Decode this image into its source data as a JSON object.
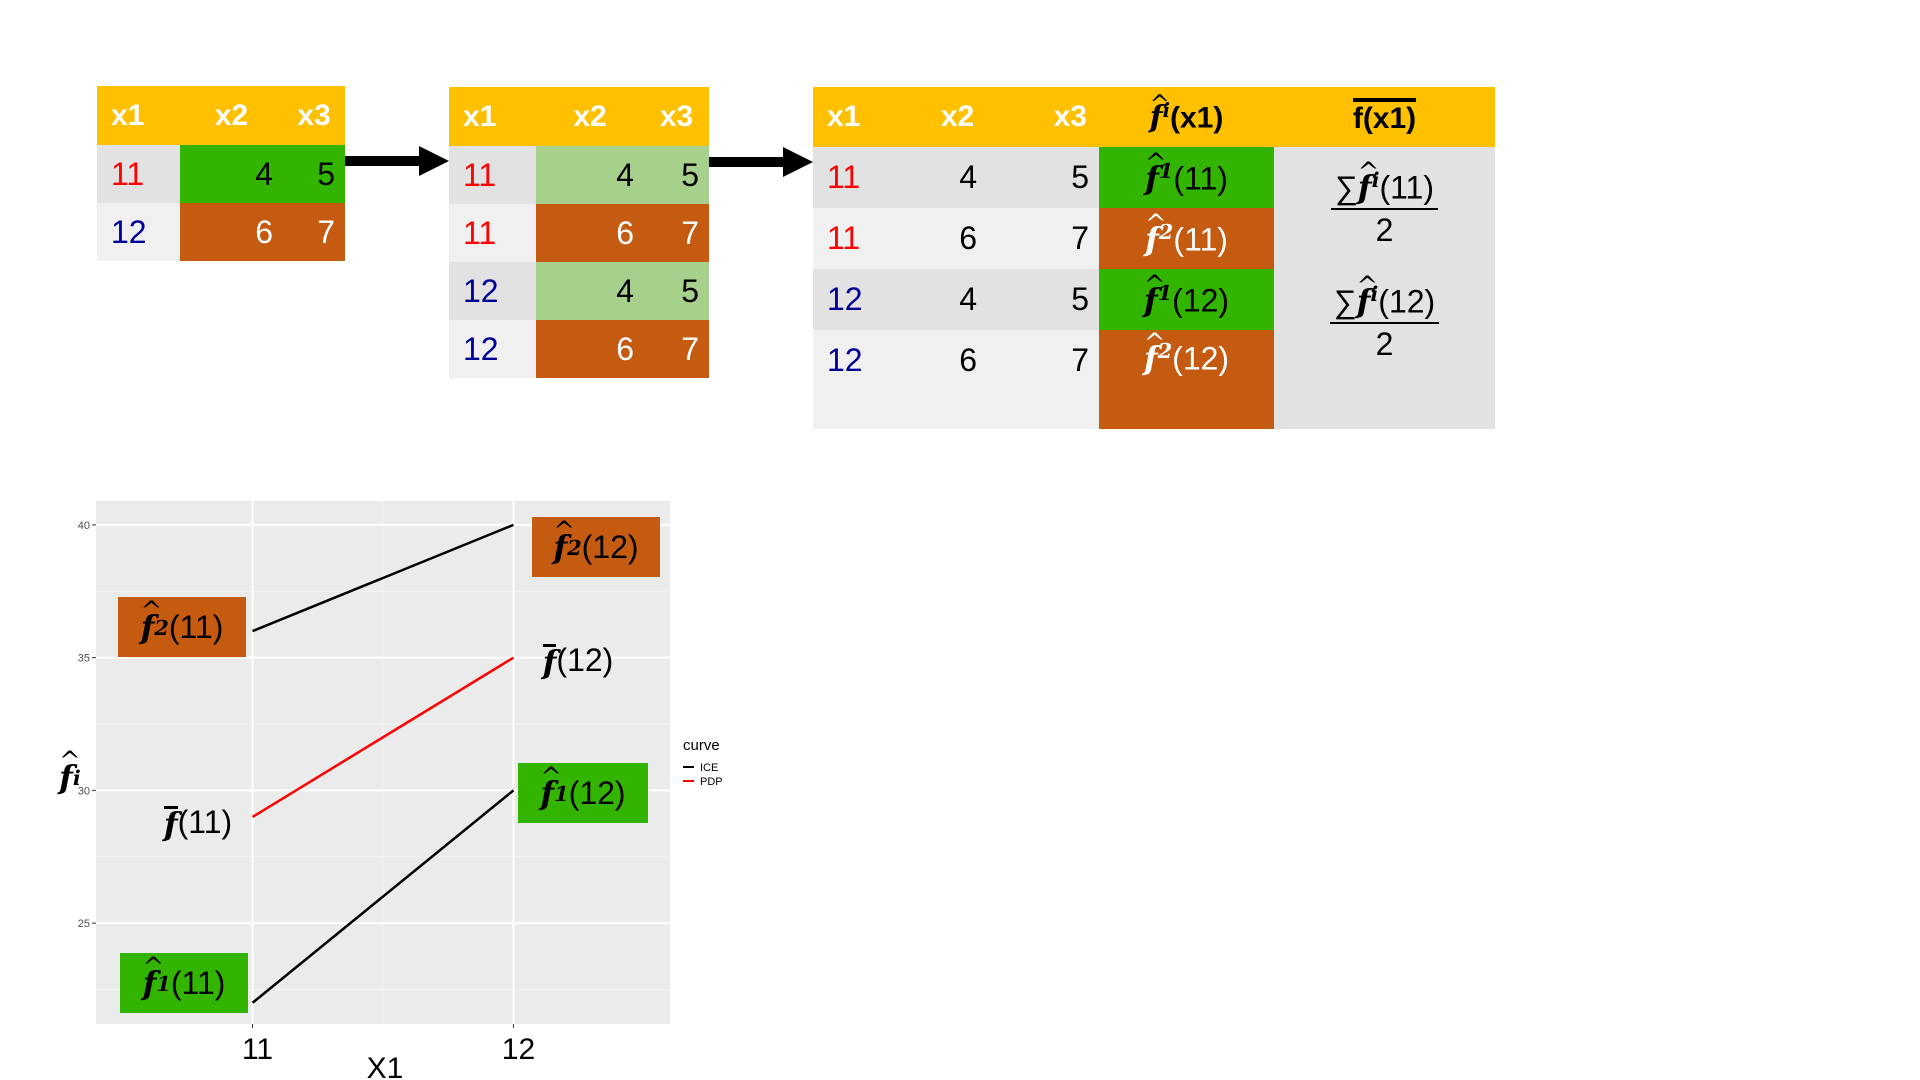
{
  "table1": {
    "headers": [
      "x1",
      "x2",
      "x3"
    ],
    "rows": [
      [
        "11",
        "4",
        "5"
      ],
      [
        "12",
        "6",
        "7"
      ]
    ]
  },
  "table2": {
    "headers": [
      "x1",
      "x2",
      "x3"
    ],
    "rows": [
      [
        "11",
        "4",
        "5"
      ],
      [
        "11",
        "6",
        "7"
      ],
      [
        "12",
        "4",
        "5"
      ],
      [
        "12",
        "6",
        "7"
      ]
    ]
  },
  "table3": {
    "headers": [
      "x1",
      "x2",
      "x3"
    ],
    "header_fi_sup": "i",
    "header_fi_arg": "(x1)",
    "header_fbar": "f(x1)",
    "rows": [
      {
        "x1": "11",
        "x2": "4",
        "x3": "5",
        "sup": "1",
        "arg": "(11)"
      },
      {
        "x1": "11",
        "x2": "6",
        "x3": "7",
        "sup": "2",
        "arg": "(11)"
      },
      {
        "x1": "12",
        "x2": "4",
        "x3": "5",
        "sup": "1",
        "arg": "(12)"
      },
      {
        "x1": "12",
        "x2": "6",
        "x3": "7",
        "sup": "2",
        "arg": "(12)"
      }
    ],
    "avg": [
      {
        "sum": "∑",
        "sup": "i",
        "arg": "(11)",
        "den": "2"
      },
      {
        "sum": "∑",
        "sup": "i",
        "arg": "(12)",
        "den": "2"
      }
    ]
  },
  "colors": {
    "header": "#ffc000",
    "green": "#33b500",
    "light_green": "#a8d08d",
    "brown": "#c55a11",
    "red_x1": "#ff0000",
    "blue_x1": "#000096"
  },
  "chart_data": {
    "type": "line",
    "xlabel": "X1",
    "ylabel_sup": "i",
    "x_ticks": [
      "11",
      "12"
    ],
    "y_ticks": [
      "25",
      "30",
      "35",
      "40"
    ],
    "ylim": [
      21.2,
      40.9
    ],
    "xlim": [
      10.4,
      12.6
    ],
    "grid": true,
    "legend_title": "curve",
    "legend_items": [
      {
        "name": "ICE",
        "color": "#000000"
      },
      {
        "name": "PDP",
        "color": "#ff0000"
      }
    ],
    "series": [
      {
        "name": "ICE",
        "x": [
          11,
          12
        ],
        "y": [
          22,
          30
        ],
        "color": "#000000"
      },
      {
        "name": "ICE",
        "x": [
          11,
          12
        ],
        "y": [
          36,
          40
        ],
        "color": "#000000"
      },
      {
        "name": "PDP",
        "x": [
          11,
          12
        ],
        "y": [
          29,
          35
        ],
        "color": "#ff0000"
      }
    ],
    "annotations": [
      {
        "sup": "2",
        "arg": "(11)",
        "box": "brown"
      },
      {
        "sup": "2",
        "arg": "(12)",
        "box": "brown"
      },
      {
        "sup": "1",
        "arg": "(11)",
        "box": "green"
      },
      {
        "sup": "1",
        "arg": "(12)",
        "box": "green"
      },
      {
        "bar": true,
        "arg": "(11)"
      },
      {
        "bar": true,
        "arg": "(12)"
      }
    ]
  }
}
